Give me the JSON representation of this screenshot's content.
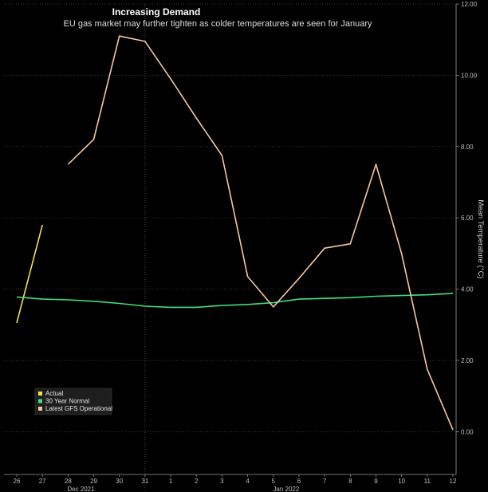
{
  "chart_data": {
    "type": "line",
    "title": "Increasing Demand",
    "subtitle": "EU gas market may further tighten as colder temperatures are seen for January",
    "ylabel": "Mean Temperature (°C)",
    "ylim": [
      -1.2,
      12.0
    ],
    "yticks": [
      0,
      2,
      4,
      6,
      8,
      10,
      12
    ],
    "ytick_labels": [
      "0.00",
      "2.00",
      "4.00",
      "6.00",
      "8.00",
      "10.00",
      "12.00"
    ],
    "x_labels": [
      "26",
      "27",
      "28",
      "29",
      "30",
      "31",
      "1",
      "2",
      "3",
      "4",
      "5",
      "6",
      "7",
      "8",
      "9",
      "10",
      "11",
      "12"
    ],
    "month_labels": [
      {
        "label": "Dec 2021",
        "index": 2.5
      },
      {
        "label": "Jan 2022",
        "index": 10.5
      }
    ],
    "divider_index": 5,
    "series": [
      {
        "name": "Actual",
        "color": "#f5e04a",
        "values": [
          3.05,
          5.8,
          null,
          null,
          null,
          null,
          null,
          null,
          null,
          null,
          null,
          null,
          null,
          null,
          null,
          null,
          null,
          null
        ]
      },
      {
        "name": "30 Year Normal",
        "color": "#3fe07a",
        "values": [
          3.78,
          3.72,
          3.7,
          3.66,
          3.6,
          3.52,
          3.49,
          3.49,
          3.54,
          3.57,
          3.62,
          3.72,
          3.74,
          3.76,
          3.8,
          3.82,
          3.84,
          3.88
        ]
      },
      {
        "name": "Latest GFS Operational",
        "color": "#f7c79e",
        "values": [
          null,
          null,
          7.5,
          8.2,
          11.1,
          10.95,
          9.9,
          8.8,
          7.75,
          4.35,
          3.5,
          4.3,
          5.15,
          5.27,
          7.5,
          5.0,
          1.75,
          0.05
        ]
      }
    ],
    "legend_position": "lower-left"
  }
}
